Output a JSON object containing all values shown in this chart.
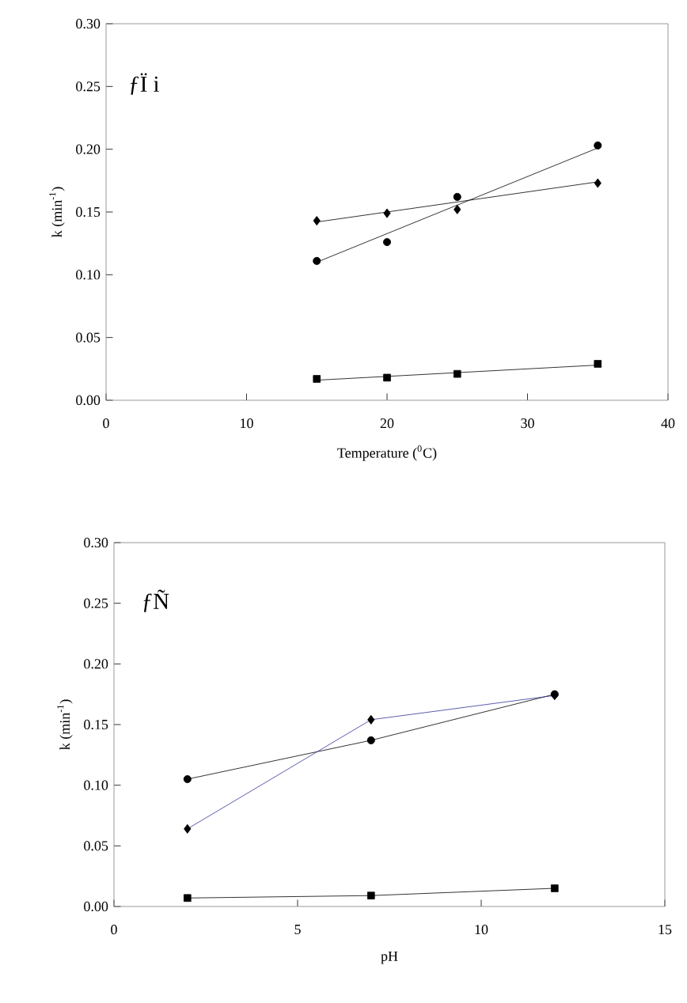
{
  "chart_data": [
    {
      "type": "scatter",
      "xlabel": "Temperature ($^{0}$C)",
      "ylabel": "k (min$^{-1}$)",
      "annotations": [
        "ƒÏ i"
      ],
      "grid": false,
      "xlim": [
        0,
        40
      ],
      "xticks": [
        0,
        10,
        20,
        30,
        40
      ],
      "ylim": [
        0,
        0.3
      ],
      "yticks": [
        {
          "value": 0,
          "label": "0.00"
        },
        {
          "value": 0.05,
          "label": "0.05"
        },
        {
          "value": 0.1,
          "label": "0.10"
        },
        {
          "value": 0.15,
          "label": "0.15"
        },
        {
          "value": 0.2,
          "label": "0.20"
        },
        {
          "value": 0.25,
          "label": "0.25"
        },
        {
          "value": 0.3,
          "label": "0.30"
        }
      ],
      "series": [
        {
          "marker": "circle",
          "color": "#000000",
          "x": [
            15,
            20,
            25,
            35
          ],
          "values": [
            0.111,
            0.126,
            0.162,
            0.203
          ]
        },
        {
          "marker": "diamond",
          "color": "#000000",
          "x": [
            15,
            20,
            25,
            35
          ],
          "values": [
            0.143,
            0.149,
            0.152,
            0.173
          ]
        },
        {
          "marker": "square",
          "color": "#000000",
          "x": [
            15,
            20,
            25,
            35
          ],
          "values": [
            0.017,
            0.018,
            0.021,
            0.029
          ]
        },
        {
          "type": "line",
          "marker": "none",
          "color": "#000000",
          "x": [
            15,
            35
          ],
          "values": [
            0.11,
            0.201
          ]
        },
        {
          "type": "line",
          "marker": "none",
          "color": "#000000",
          "x": [
            15,
            35
          ],
          "values": [
            0.142,
            0.174
          ]
        },
        {
          "type": "line",
          "marker": "none",
          "color": "#000000",
          "x": [
            15,
            35
          ],
          "values": [
            0.016,
            0.028
          ]
        }
      ]
    },
    {
      "type": "line",
      "xlabel": "pH",
      "ylabel": "k (min$^{-1}$)",
      "annotations": [
        "ƒÑ"
      ],
      "grid": false,
      "xlim": [
        0,
        15
      ],
      "xticks": [
        0,
        5,
        10,
        15
      ],
      "ylim": [
        0,
        0.3
      ],
      "yticks": [
        {
          "value": 0,
          "label": "0.00"
        },
        {
          "value": 0.05,
          "label": "0.05"
        },
        {
          "value": 0.1,
          "label": "0.10"
        },
        {
          "value": 0.15,
          "label": "0.15"
        },
        {
          "value": 0.2,
          "label": "0.20"
        },
        {
          "value": 0.25,
          "label": "0.25"
        },
        {
          "value": 0.3,
          "label": "0.30"
        }
      ],
      "series": [
        {
          "marker": "circle",
          "color": "#000000",
          "x": [
            2,
            7,
            12
          ],
          "values": [
            0.105,
            0.137,
            0.175
          ]
        },
        {
          "marker": "diamond",
          "color": "#333399",
          "x": [
            2,
            7,
            12
          ],
          "values": [
            0.064,
            0.154,
            0.174
          ]
        },
        {
          "marker": "square",
          "color": "#000000",
          "x": [
            2,
            7,
            12
          ],
          "values": [
            0.007,
            0.009,
            0.015
          ]
        }
      ]
    }
  ]
}
